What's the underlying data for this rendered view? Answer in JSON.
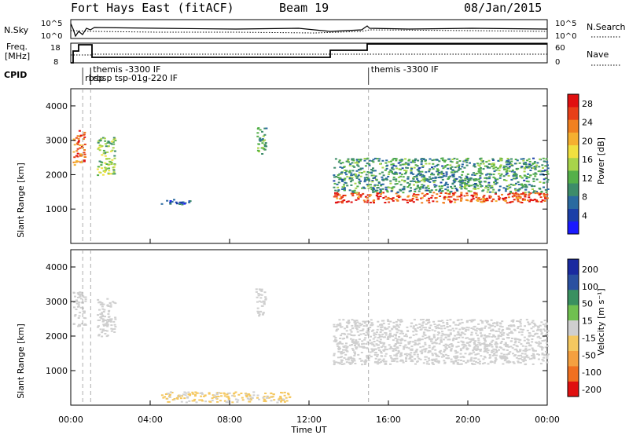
{
  "header": {
    "station": "Fort Hays East (fitACF)",
    "beam": "Beam 19",
    "date": "08/Jan/2015"
  },
  "labels": {
    "nsky": "N.Sky",
    "nsearch": "N.Search",
    "freq_line1": "Freq.",
    "freq_line2": "[MHz]",
    "nave": "Nave",
    "cpid": "CPID",
    "ylabel": "Slant Range [km]",
    "xlabel": "Time UT",
    "power_label": "Power [dB]",
    "velocity_label": "Velocity [m s⁻¹]"
  },
  "noise_axis": {
    "left_ticks": [
      "10^5",
      "10^0"
    ],
    "right_ticks": [
      "10^5",
      "10^0"
    ]
  },
  "freq_axis": {
    "left_ticks": [
      "18",
      "8"
    ],
    "right_ticks": [
      "60",
      "0"
    ]
  },
  "cpid_events": [
    {
      "time_hr": 0.6,
      "label": "rbsp"
    },
    {
      "time_hr": 1.0,
      "label": "themis -3300 IF"
    },
    {
      "time_hr": 1.0,
      "label": "rbsp tsp-01g-220 IF"
    },
    {
      "time_hr": 15.0,
      "label": "themis -3300 IF"
    }
  ],
  "chart_data": [
    {
      "type": "heatmap",
      "name": "power",
      "x_range_hr": [
        0,
        24
      ],
      "ylim": [
        0,
        4500
      ],
      "x_ticks": [
        "00:00",
        "04:00",
        "08:00",
        "12:00",
        "16:00",
        "20:00",
        "00:00"
      ],
      "y_ticks": [
        1000,
        2000,
        3000,
        4000
      ],
      "colorbar": {
        "label": "Power [dB]",
        "ticks": [
          4,
          8,
          12,
          16,
          20,
          24,
          28
        ],
        "range": [
          0,
          30
        ]
      },
      "features": [
        {
          "t0": 0.1,
          "t1": 0.7,
          "r_lo": 2300,
          "r_hi": 3300,
          "level": 24
        },
        {
          "t0": 1.3,
          "t1": 2.2,
          "r_lo": 2000,
          "r_hi": 3100,
          "level": 14
        },
        {
          "t0": 9.3,
          "t1": 9.8,
          "r_lo": 2600,
          "r_hi": 3400,
          "level": 12
        },
        {
          "t0": 4.5,
          "t1": 6.0,
          "r_lo": 1150,
          "r_hi": 1300,
          "level": 6
        },
        {
          "t0": 13.2,
          "t1": 24,
          "r_lo": 1200,
          "r_hi": 1500,
          "level": 26
        },
        {
          "t0": 13.2,
          "t1": 24,
          "r_lo": 1500,
          "r_hi": 2500,
          "level": 10
        }
      ]
    },
    {
      "type": "heatmap",
      "name": "velocity",
      "x_range_hr": [
        0,
        24
      ],
      "ylim": [
        0,
        4500
      ],
      "x_ticks": [
        "00:00",
        "04:00",
        "08:00",
        "12:00",
        "16:00",
        "20:00",
        "00:00"
      ],
      "y_ticks": [
        1000,
        2000,
        3000,
        4000
      ],
      "colorbar": {
        "label": "Velocity [m s⁻¹]",
        "ticks": [
          200,
          100,
          50,
          15,
          -15,
          -50,
          -100,
          -200
        ],
        "range": [
          -250,
          250
        ]
      },
      "features": [
        {
          "t0": 0.1,
          "t1": 0.7,
          "r_lo": 2300,
          "r_hi": 3300,
          "level": 0
        },
        {
          "t0": 1.3,
          "t1": 2.2,
          "r_lo": 2000,
          "r_hi": 3100,
          "level": 0
        },
        {
          "t0": 9.3,
          "t1": 9.8,
          "r_lo": 2600,
          "r_hi": 3400,
          "level": 0
        },
        {
          "t0": 13.2,
          "t1": 24,
          "r_lo": 1200,
          "r_hi": 2500,
          "level": 0
        },
        {
          "t0": 4.5,
          "t1": 11.0,
          "r_lo": 100,
          "r_hi": 400,
          "level": -30
        }
      ]
    }
  ],
  "colors": {
    "power_scale": [
      "#1a1aff",
      "#1b3fa8",
      "#2a6aa0",
      "#3d8c6a",
      "#55b04a",
      "#a8d44a",
      "#f0e040",
      "#f5b030",
      "#f08020",
      "#e84018",
      "#e01010"
    ],
    "velocity_scale": [
      "#e01010",
      "#f07020",
      "#f5a040",
      "#f5c860",
      "#d0d0d0",
      "#70c050",
      "#3a9060",
      "#2a50a0",
      "#1a2aa0"
    ]
  }
}
